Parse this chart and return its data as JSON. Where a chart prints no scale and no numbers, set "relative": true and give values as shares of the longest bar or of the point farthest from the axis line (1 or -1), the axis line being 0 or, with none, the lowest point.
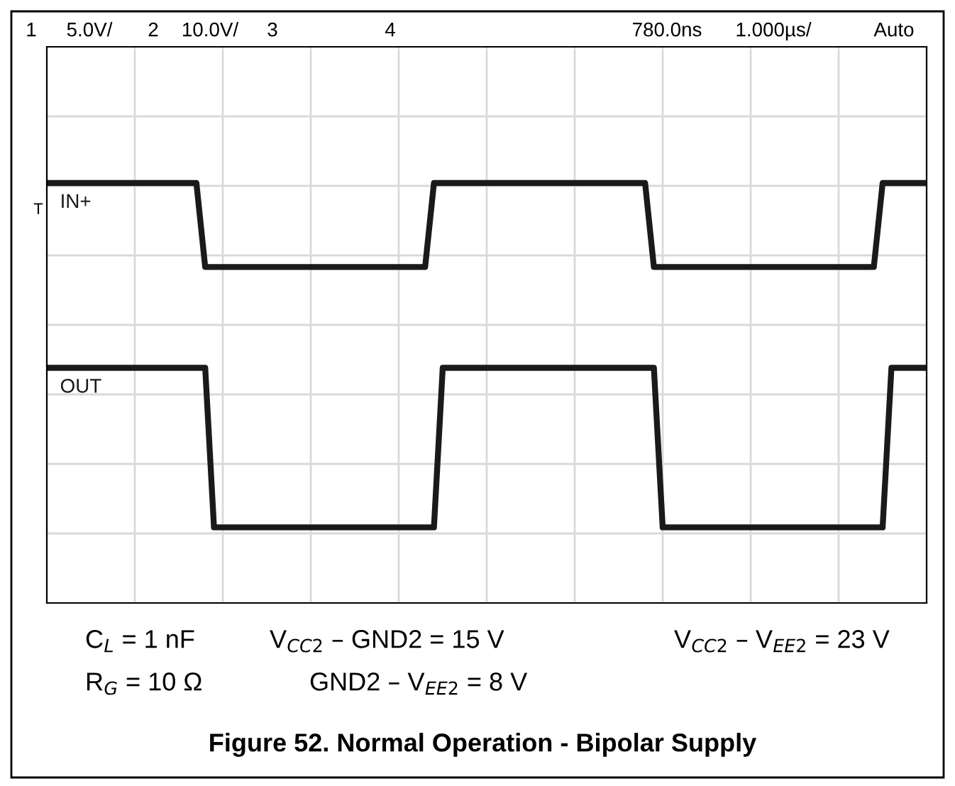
{
  "chart_data": {
    "type": "line",
    "relative": true,
    "title": "Figure 52. Normal Operation - Bipolar Supply",
    "categories": [
      null,
      null,
      null,
      null,
      null,
      null,
      null,
      null,
      null,
      null,
      null,
      null,
      null,
      null,
      null,
      null,
      null,
      null,
      null,
      null,
      null,
      null,
      null,
      null,
      null,
      null,
      null,
      null,
      null,
      null,
      null,
      null,
      null,
      null,
      null,
      null,
      null,
      null,
      null,
      null,
      null,
      null,
      null,
      null,
      null,
      null,
      null,
      null,
      null,
      null,
      null,
      null,
      null,
      null,
      null,
      null,
      null,
      null,
      null,
      null,
      null,
      null,
      null,
      null,
      null,
      null,
      null,
      null,
      null,
      null,
      null,
      null,
      null,
      null,
      null,
      null,
      null,
      null,
      null,
      null,
      null,
      null,
      null,
      null,
      null,
      null,
      null,
      null,
      null,
      null,
      null,
      null,
      null,
      null,
      null,
      null,
      null,
      null,
      null,
      null,
      null
    ],
    "series": [
      {
        "name": "IN+",
        "color": "#1a1a1a",
        "values": [
          1,
          1,
          1,
          1,
          1,
          1,
          1,
          1,
          1,
          1,
          1,
          1,
          1,
          1,
          1,
          1,
          1,
          1,
          0.8,
          0.8,
          0.8,
          0.8,
          0.8,
          0.8,
          0.8,
          0.8,
          0.8,
          0.8,
          0.8,
          0.8,
          0.8,
          0.8,
          0.8,
          0.8,
          0.8,
          0.8,
          0.8,
          0.8,
          0.8,
          0.8,
          0.8,
          0.8,
          0.8,
          0.8,
          1,
          1,
          1,
          1,
          1,
          1,
          1,
          1,
          1,
          1,
          1,
          1,
          1,
          1,
          1,
          1,
          1,
          1,
          1,
          1,
          1,
          1,
          1,
          1,
          1,
          0.8,
          0.8,
          0.8,
          0.8,
          0.8,
          0.8,
          0.8,
          0.8,
          0.8,
          0.8,
          0.8,
          0.8,
          0.8,
          0.8,
          0.8,
          0.8,
          0.8,
          0.8,
          0.8,
          0.8,
          0.8,
          0.8,
          0.8,
          0.8,
          0.8,
          0.8,
          1,
          1,
          1,
          1,
          1,
          1
        ]
      },
      {
        "name": "OUT",
        "color": "#1a1a1a",
        "values": [
          0.56,
          0.56,
          0.56,
          0.56,
          0.56,
          0.56,
          0.56,
          0.56,
          0.56,
          0.56,
          0.56,
          0.56,
          0.56,
          0.56,
          0.56,
          0.56,
          0.56,
          0.56,
          0.56,
          0.18,
          0.18,
          0.18,
          0.18,
          0.18,
          0.18,
          0.18,
          0.18,
          0.18,
          0.18,
          0.18,
          0.18,
          0.18,
          0.18,
          0.18,
          0.18,
          0.18,
          0.18,
          0.18,
          0.18,
          0.18,
          0.18,
          0.18,
          0.18,
          0.18,
          0.18,
          0.56,
          0.56,
          0.56,
          0.56,
          0.56,
          0.56,
          0.56,
          0.56,
          0.56,
          0.56,
          0.56,
          0.56,
          0.56,
          0.56,
          0.56,
          0.56,
          0.56,
          0.56,
          0.56,
          0.56,
          0.56,
          0.56,
          0.56,
          0.56,
          0.56,
          0.18,
          0.18,
          0.18,
          0.18,
          0.18,
          0.18,
          0.18,
          0.18,
          0.18,
          0.18,
          0.18,
          0.18,
          0.18,
          0.18,
          0.18,
          0.18,
          0.18,
          0.18,
          0.18,
          0.18,
          0.18,
          0.18,
          0.18,
          0.18,
          0.18,
          0.18,
          0.56,
          0.56,
          0.56,
          0.56,
          0.56
        ]
      }
    ],
    "annotations": [
      "1",
      "5.0V/",
      "2",
      "10.0V/",
      "3",
      "4",
      "780.0ns",
      "1.000µs/",
      "Auto",
      "T",
      "C$_{L}$ = 1 nF",
      "V$_{CC2}$ – GND2 = 15 V",
      "V$_{CC2}$ – V$_{EE2}$ = 23 V",
      "R$_{G}$ = 10 Ω",
      "GND2 – V$_{EE2}$ = 8 V"
    ],
    "grid": true,
    "legend": false,
    "line_style": "solid",
    "marker": "none"
  }
}
